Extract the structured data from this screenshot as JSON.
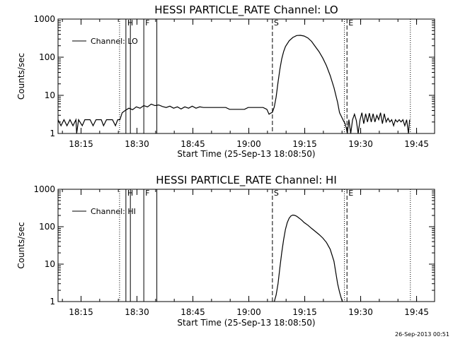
{
  "timestamp": "26-Sep-2013 00:51",
  "chart_data": [
    {
      "type": "line",
      "title": "HESSI PARTICLE_RATE Channel: LO",
      "xlabel": "Start Time (25-Sep-13 18:08:50)",
      "ylabel": "Counts/sec",
      "yscale": "log",
      "ylim": [
        1,
        1000
      ],
      "xlim_minutes": [
        0,
        101
      ],
      "x_tick_labels": [
        "18:15",
        "18:30",
        "18:45",
        "19:00",
        "19:15",
        "19:30",
        "19:45"
      ],
      "x_tick_minutes": [
        6.17,
        21.17,
        36.17,
        51.17,
        66.17,
        81.17,
        96.17
      ],
      "y_tick_labels": [
        "1",
        "10",
        "100",
        "1000"
      ],
      "y_tick_values": [
        1,
        10,
        100,
        1000
      ],
      "legend": "Channel: LO",
      "legend_position": "top-left",
      "markers": [
        {
          "label": "",
          "minute": 16.5,
          "style": "dotted"
        },
        {
          "label": "H",
          "minute": 18.2,
          "style": "solid"
        },
        {
          "label": "",
          "minute": 19.4,
          "style": "solid"
        },
        {
          "label": "F",
          "minute": 23.0,
          "style": "solid"
        },
        {
          "label": "",
          "minute": 26.5,
          "style": "solid"
        },
        {
          "label": "S",
          "minute": 57.5,
          "style": "dashed"
        },
        {
          "label": "E",
          "minute": 77.5,
          "style": "dashed"
        },
        {
          "label": "",
          "minute": 76.8,
          "style": "dotted"
        },
        {
          "label": "",
          "minute": 94.5,
          "style": "dotted"
        }
      ],
      "series": [
        {
          "x": [
            0,
            0.8,
            1.6,
            2.4,
            3.2,
            4.0,
            4.8,
            5.0,
            5.5,
            6.5,
            7.2,
            8.0,
            8.6,
            9.4,
            10.2,
            10.8,
            11.6,
            12.2,
            13.0,
            13.8,
            14.6,
            15.4,
            16.0,
            16.6,
            17.2,
            18.0,
            19.0,
            20.0,
            21.0,
            22.0,
            23.0,
            24.0,
            25.0,
            26.0,
            27.0,
            28.0,
            29.0,
            30.0,
            31.0,
            32.0,
            33.0,
            34.0,
            35.0,
            36.0,
            37.0,
            38.0,
            39.0,
            40.0,
            41.0,
            42.0,
            43.0,
            44.0,
            45.0,
            46.0,
            47.0,
            48.0,
            49.0,
            50.0,
            51.0,
            52.0,
            53.0,
            54.0,
            55.0,
            56.0,
            56.6,
            57.0,
            57.5,
            58.0,
            58.5,
            59.0,
            59.5,
            60.0,
            60.5,
            61.0,
            62.0,
            63.0,
            64.0,
            65.0,
            66.0,
            67.0,
            68.0,
            69.0,
            70.0,
            71.0,
            72.0,
            73.0,
            74.0,
            75.0,
            75.5,
            76.0,
            76.5,
            77.0,
            77.3,
            77.6,
            78.0,
            78.5,
            79.0,
            79.5,
            80.0,
            80.5,
            81.0,
            81.5,
            82.0,
            82.5,
            83.0,
            83.5,
            84.0,
            84.5,
            85.0,
            85.5,
            86.0,
            86.5,
            87.0,
            87.5,
            88.0,
            88.5,
            89.0,
            89.5,
            90.0,
            90.5,
            91.0,
            91.5,
            92.0,
            92.5,
            93.0,
            93.5,
            94.0,
            94.3
          ],
          "values": [
            2.3,
            1.6,
            2.3,
            1.6,
            2.3,
            1.6,
            2.3,
            1.0,
            2.3,
            1.6,
            2.3,
            2.3,
            2.3,
            1.6,
            2.3,
            2.3,
            2.3,
            1.6,
            2.3,
            2.3,
            2.3,
            1.6,
            2.3,
            2.3,
            3.5,
            4.0,
            4.6,
            4.2,
            5.0,
            4.6,
            5.4,
            5.0,
            5.9,
            5.4,
            5.6,
            5.1,
            4.8,
            5.2,
            4.6,
            5.0,
            4.4,
            5.0,
            4.6,
            5.2,
            4.6,
            5.0,
            4.8,
            4.8,
            4.8,
            4.8,
            4.8,
            4.8,
            4.8,
            4.3,
            4.3,
            4.3,
            4.3,
            4.3,
            4.8,
            4.8,
            4.8,
            4.8,
            4.8,
            4.3,
            3.2,
            3.4,
            3.6,
            5.0,
            9,
            22,
            48,
            90,
            140,
            190,
            270,
            330,
            370,
            375,
            360,
            320,
            260,
            190,
            140,
            95,
            60,
            33,
            16,
            6.5,
            3.5,
            2.8,
            2.2,
            1.8,
            1.4,
            1.0,
            2.3,
            1.0,
            2.3,
            3.2,
            2.2,
            1.0,
            2.3,
            3.5,
            1.8,
            3.3,
            2.0,
            3.4,
            2.0,
            3.3,
            2.0,
            3.0,
            2.3,
            3.5,
            1.8,
            3.3,
            2.0,
            2.5,
            2.0,
            2.3,
            1.6,
            2.3,
            2.0,
            2.3,
            2.0,
            2.3,
            1.6,
            2.3,
            1.0,
            2.3
          ]
        }
      ]
    },
    {
      "type": "line",
      "title": "HESSI PARTICLE_RATE Channel: HI",
      "xlabel": "Start Time (25-Sep-13 18:08:50)",
      "ylabel": "Counts/sec",
      "yscale": "log",
      "ylim": [
        1,
        1000
      ],
      "xlim_minutes": [
        0,
        101
      ],
      "x_tick_labels": [
        "18:15",
        "18:30",
        "18:45",
        "19:00",
        "19:15",
        "19:30",
        "19:45"
      ],
      "x_tick_minutes": [
        6.17,
        21.17,
        36.17,
        51.17,
        66.17,
        81.17,
        96.17
      ],
      "y_tick_labels": [
        "1",
        "10",
        "100",
        "1000"
      ],
      "y_tick_values": [
        1,
        10,
        100,
        1000
      ],
      "legend": "Channel: HI",
      "legend_position": "top-left",
      "markers": [
        {
          "label": "",
          "minute": 16.5,
          "style": "dotted"
        },
        {
          "label": "H",
          "minute": 18.2,
          "style": "solid"
        },
        {
          "label": "",
          "minute": 19.4,
          "style": "solid"
        },
        {
          "label": "F",
          "minute": 23.0,
          "style": "solid"
        },
        {
          "label": "",
          "minute": 26.5,
          "style": "solid"
        },
        {
          "label": "S",
          "minute": 57.5,
          "style": "dashed"
        },
        {
          "label": "E",
          "minute": 77.5,
          "style": "dashed"
        },
        {
          "label": "",
          "minute": 76.8,
          "style": "dotted"
        },
        {
          "label": "",
          "minute": 94.5,
          "style": "dotted"
        }
      ],
      "series": [
        {
          "x": [
            58.0,
            58.5,
            59.0,
            59.5,
            60.0,
            60.5,
            61.0,
            61.5,
            62.0,
            62.5,
            63.0,
            63.5,
            64.0,
            64.5,
            65.0,
            65.5,
            66.0,
            67.0,
            68.0,
            69.0,
            70.0,
            71.0,
            72.0,
            73.0,
            74.0,
            74.5,
            75.0,
            75.5,
            76.0,
            76.3
          ],
          "values": [
            1.0,
            1.5,
            3,
            8,
            20,
            45,
            85,
            130,
            170,
            195,
            205,
            200,
            190,
            175,
            160,
            145,
            130,
            110,
            90,
            75,
            62,
            50,
            38,
            25,
            12,
            6,
            3,
            1.8,
            1.2,
            1.0
          ]
        }
      ]
    }
  ]
}
